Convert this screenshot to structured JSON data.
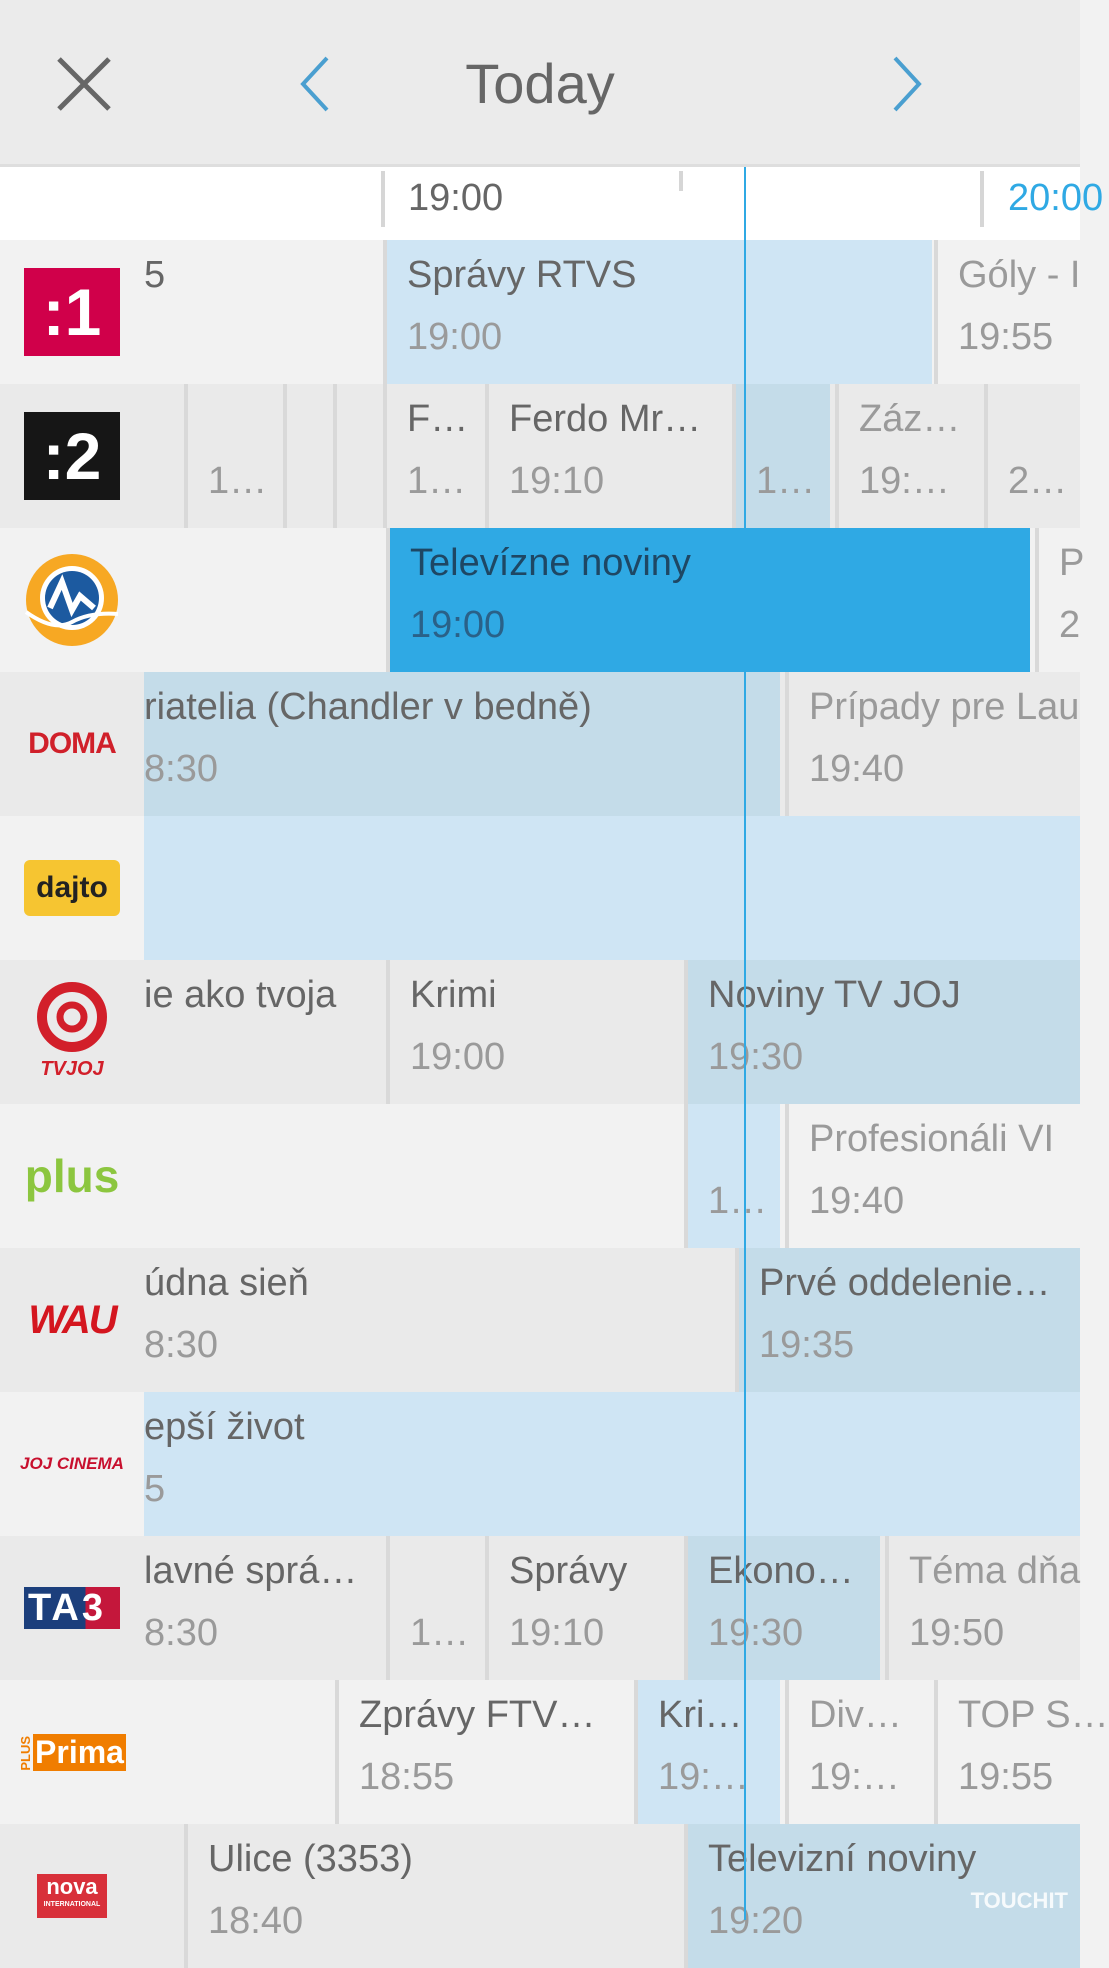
{
  "header": {
    "title": "Today",
    "close_icon": "close-x-icon",
    "prev_icon": "chevron-left-icon",
    "next_icon": "chevron-right-icon"
  },
  "ruler": {
    "labels": [
      "19:00",
      "20:00"
    ],
    "current_hour_color": "#2fa9e4"
  },
  "colors": {
    "accent": "#2fa9e4",
    "now_light": "#cfe5f4",
    "now_dark": "#c4dce9",
    "selected": "#2fa9e4"
  },
  "channels": [
    {
      "name": ":1",
      "programs": [
        {
          "title": "5",
          "time": "",
          "state": "past"
        },
        {
          "title": "Správy RTVS",
          "time": "19:00",
          "state": "now"
        },
        {
          "title": "Góly - I",
          "time": "19:55",
          "state": "future"
        }
      ]
    },
    {
      "name": ":2",
      "programs": [
        {
          "title": "",
          "time": "",
          "state": "past"
        },
        {
          "title": "",
          "time": "1…",
          "state": "past"
        },
        {
          "title": "",
          "time": "",
          "state": "past"
        },
        {
          "title": "",
          "time": "",
          "state": "past"
        },
        {
          "title": "F…",
          "time": "1…",
          "state": "past"
        },
        {
          "title": "Ferdo Mr…",
          "time": "19:10",
          "state": "past"
        },
        {
          "title": "",
          "time": "1…",
          "state": "now"
        },
        {
          "title": "Záz…",
          "time": "19:…",
          "state": "future"
        },
        {
          "title": "",
          "time": "2…",
          "state": "future"
        }
      ]
    },
    {
      "name": "Markíza",
      "programs": [
        {
          "title": "",
          "time": "",
          "state": "past"
        },
        {
          "title": "Televízne noviny",
          "time": "19:00",
          "state": "selected"
        },
        {
          "title": "P",
          "time": "2",
          "state": "future"
        }
      ]
    },
    {
      "name": "DOMA",
      "programs": [
        {
          "title": "riatelia (Chandler v bedně)",
          "time": "8:30",
          "state": "now"
        },
        {
          "title": "Prípady pre Lau",
          "time": "19:40",
          "state": "future"
        }
      ]
    },
    {
      "name": "dajto",
      "programs": [
        {
          "title": "",
          "time": "",
          "state": "now"
        }
      ]
    },
    {
      "name": "TV JOJ",
      "programs": [
        {
          "title": "ie ako tvoja",
          "time": "",
          "state": "past"
        },
        {
          "title": "Krimi",
          "time": "19:00",
          "state": "past"
        },
        {
          "title": "Noviny TV JOJ",
          "time": "19:30",
          "state": "now"
        }
      ]
    },
    {
      "name": "plus",
      "programs": [
        {
          "title": "",
          "time": "",
          "state": "past"
        },
        {
          "title": "",
          "time": "1…",
          "state": "now"
        },
        {
          "title": "Profesionáli VI",
          "time": "19:40",
          "state": "future"
        }
      ]
    },
    {
      "name": "WAU",
      "programs": [
        {
          "title": "údna sieň",
          "time": "8:30",
          "state": "past"
        },
        {
          "title": "Prvé oddelenie…",
          "time": "19:35",
          "state": "now"
        }
      ]
    },
    {
      "name": "JOJ CINEMA",
      "programs": [
        {
          "title": "epší život",
          "time": "5",
          "state": "now"
        }
      ]
    },
    {
      "name": "TA3",
      "programs": [
        {
          "title": "lavné sprá…",
          "time": "8:30",
          "state": "past"
        },
        {
          "title": "",
          "time": "1…",
          "state": "past"
        },
        {
          "title": "Správy",
          "time": "19:10",
          "state": "past"
        },
        {
          "title": "Ekono…",
          "time": "19:30",
          "state": "now"
        },
        {
          "title": "Téma dňa",
          "time": "19:50",
          "state": "future"
        }
      ]
    },
    {
      "name": "PLUS Prima",
      "programs": [
        {
          "title": "",
          "time": "",
          "state": "past"
        },
        {
          "title": "Zprávy FTV…",
          "time": "18:55",
          "state": "past"
        },
        {
          "title": "Kri…",
          "time": "19:…",
          "state": "now"
        },
        {
          "title": "Div…",
          "time": "19:…",
          "state": "future"
        },
        {
          "title": "TOP S…",
          "time": "19:55",
          "state": "future"
        }
      ]
    },
    {
      "name": "nova INTERNATIONAL",
      "programs": [
        {
          "title": "",
          "time": "",
          "state": "past"
        },
        {
          "title": "Ulice (3353)",
          "time": "18:40",
          "state": "past"
        },
        {
          "title": "Televizní noviny",
          "time": "19:20",
          "state": "now"
        }
      ]
    }
  ],
  "watermark": "TOUCHIT"
}
